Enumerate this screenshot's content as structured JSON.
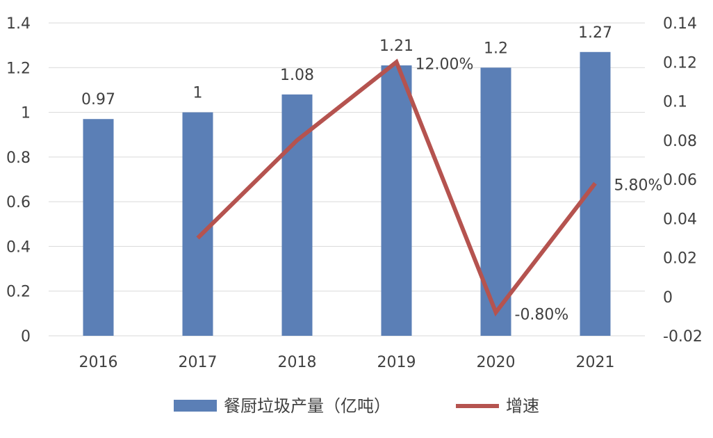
{
  "chart_data": {
    "type": "bar",
    "categories": [
      "2016",
      "2017",
      "2018",
      "2019",
      "2020",
      "2021"
    ],
    "series": [
      {
        "name": "餐厨垃圾产量（亿吨）",
        "type": "bar",
        "axis": "left",
        "values": [
          0.97,
          1,
          1.08,
          1.21,
          1.2,
          1.27
        ],
        "labels": [
          "0.97",
          "1",
          "1.08",
          "1.21",
          "1.2",
          "1.27"
        ],
        "color": "#5B7FB6"
      },
      {
        "name": "增速",
        "type": "line",
        "axis": "right",
        "values": [
          null,
          0.03,
          0.08,
          0.12,
          -0.008,
          0.058
        ],
        "labels": [
          "",
          "",
          "",
          "12.00%",
          "-0.80%",
          "5.80%"
        ],
        "color": "#B5534F"
      }
    ],
    "yleft": {
      "lim": [
        0,
        1.4
      ],
      "ticks": [
        0,
        0.2,
        0.4,
        0.6,
        0.8,
        1,
        1.2,
        1.4
      ],
      "tick_labels": [
        "0",
        "0.2",
        "0.4",
        "0.6",
        "0.8",
        "1",
        "1.2",
        "1.4"
      ]
    },
    "yright": {
      "lim": [
        -0.02,
        0.14
      ],
      "ticks": [
        -0.02,
        0,
        0.02,
        0.04,
        0.06,
        0.08,
        0.1,
        0.12,
        0.14
      ],
      "tick_labels": [
        "-0.02",
        "0",
        "0.02",
        "0.04",
        "0.06",
        "0.08",
        "0.1",
        "0.12",
        "0.14"
      ]
    },
    "grid": true,
    "legend_position": "bottom"
  }
}
